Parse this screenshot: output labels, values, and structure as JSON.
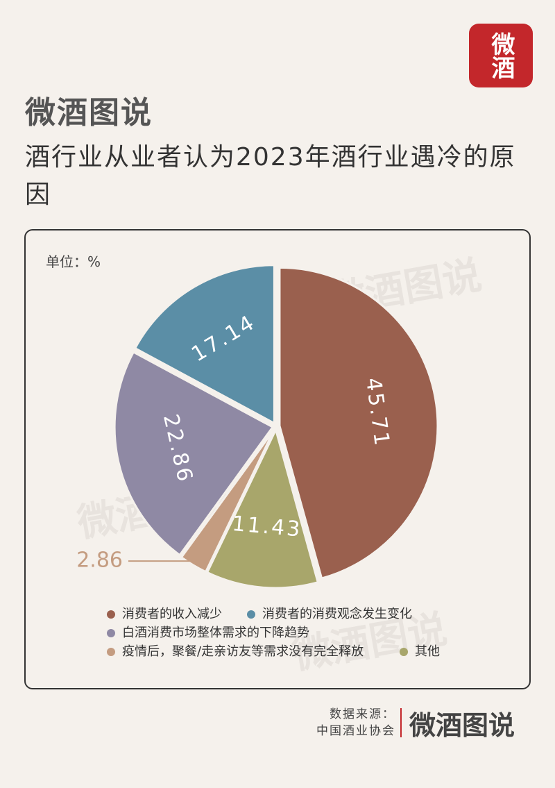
{
  "logo": "微酒",
  "brand": "微酒图说",
  "chart_data": {
    "type": "pie",
    "title": "酒行业从业者认为2023年酒行业遇冷的原因",
    "unit_label": "单位：%",
    "categories": [
      "消费者的收入减少",
      "其他",
      "疫情后，聚餐/走亲访友等需求没有完全释放",
      "白酒消费市场整体需求的下降趋势",
      "消费者的消费观念发生变化"
    ],
    "values": [
      45.71,
      11.43,
      2.86,
      22.86,
      17.14
    ],
    "colors": [
      "#9a604e",
      "#a8a66b",
      "#c49c80",
      "#8f89a4",
      "#5b8ea6"
    ]
  },
  "source": {
    "label": "数据来源：",
    "value": "中国酒业协会"
  }
}
